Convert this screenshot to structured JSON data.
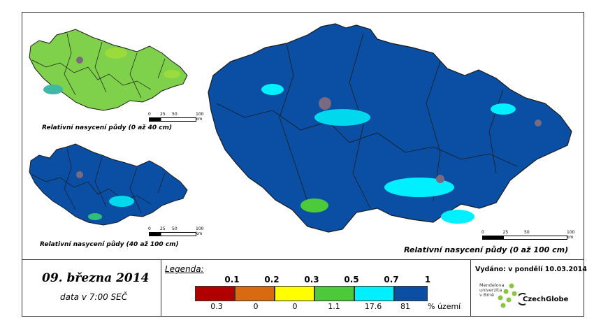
{
  "maps": {
    "top_small_caption": "Relativní nasycení půdy (0 až 40 cm)",
    "bottom_small_caption": "Relativní nasycení půdy (40 až 100 cm)",
    "main_caption": "Relativní nasycení půdy (0 až 100 cm)",
    "scale_ticks": [
      "0",
      "25",
      "50",
      "100 km"
    ]
  },
  "footer": {
    "date": "09. března 2014",
    "time": "data v 7:00 SEČ",
    "legend_label": "Legenda:",
    "thresholds": [
      "0.1",
      "0.2",
      "0.3",
      "0.5",
      "0.7",
      "1"
    ],
    "classes": [
      {
        "color": "#b10000",
        "percent": "0.3"
      },
      {
        "color": "#d86a10",
        "percent": "0"
      },
      {
        "color": "#ffff00",
        "percent": "0"
      },
      {
        "color": "#4cca3a",
        "percent": "1.1"
      },
      {
        "color": "#00f0ff",
        "percent": "17.6"
      },
      {
        "color": "#0a4fa3",
        "percent": "81"
      }
    ],
    "percent_unit": "% území",
    "issued": "Vydáno: v pondělí 10.03.2014",
    "university": [
      "Mendelova",
      "univerzita",
      "v Brně"
    ],
    "logo": "CzechGlobe"
  },
  "colors": {
    "dark_blue": "#0a4fa3",
    "cyan": "#00f0ff",
    "green": "#4cca3a",
    "border": "#1a1a1a"
  }
}
